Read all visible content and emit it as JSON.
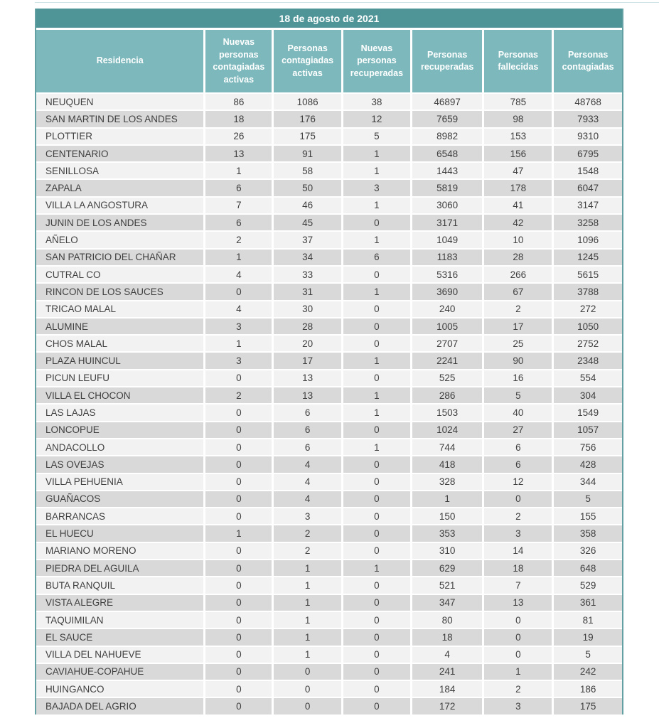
{
  "table": {
    "title": "18 de agosto de 2021",
    "columns": [
      "Residencia",
      "Nuevas personas contagiadas activas",
      "Personas contagiadas activas",
      "Nuevas personas recuperadas",
      "Personas recuperadas",
      "Personas fallecidas",
      "Personas contagiadas"
    ],
    "rows": [
      {
        "residencia": "NEUQUEN",
        "values": [
          86,
          1086,
          38,
          46897,
          785,
          48768
        ]
      },
      {
        "residencia": "SAN MARTIN DE LOS ANDES",
        "values": [
          18,
          176,
          12,
          7659,
          98,
          7933
        ]
      },
      {
        "residencia": "PLOTTIER",
        "values": [
          26,
          175,
          5,
          8982,
          153,
          9310
        ]
      },
      {
        "residencia": "CENTENARIO",
        "values": [
          13,
          91,
          1,
          6548,
          156,
          6795
        ]
      },
      {
        "residencia": "SENILLOSA",
        "values": [
          1,
          58,
          1,
          1443,
          47,
          1548
        ]
      },
      {
        "residencia": "ZAPALA",
        "values": [
          6,
          50,
          3,
          5819,
          178,
          6047
        ]
      },
      {
        "residencia": "VILLA LA ANGOSTURA",
        "values": [
          7,
          46,
          1,
          3060,
          41,
          3147
        ]
      },
      {
        "residencia": "JUNIN DE LOS ANDES",
        "values": [
          6,
          45,
          0,
          3171,
          42,
          3258
        ]
      },
      {
        "residencia": "AÑELO",
        "values": [
          2,
          37,
          1,
          1049,
          10,
          1096
        ]
      },
      {
        "residencia": "SAN PATRICIO DEL CHAÑAR",
        "values": [
          1,
          34,
          6,
          1183,
          28,
          1245
        ]
      },
      {
        "residencia": "CUTRAL CO",
        "values": [
          4,
          33,
          0,
          5316,
          266,
          5615
        ]
      },
      {
        "residencia": "RINCON DE LOS SAUCES",
        "values": [
          0,
          31,
          1,
          3690,
          67,
          3788
        ]
      },
      {
        "residencia": "TRICAO MALAL",
        "values": [
          4,
          30,
          0,
          240,
          2,
          272
        ]
      },
      {
        "residencia": "ALUMINE",
        "values": [
          3,
          28,
          0,
          1005,
          17,
          1050
        ]
      },
      {
        "residencia": "CHOS MALAL",
        "values": [
          1,
          20,
          0,
          2707,
          25,
          2752
        ]
      },
      {
        "residencia": "PLAZA HUINCUL",
        "values": [
          3,
          17,
          1,
          2241,
          90,
          2348
        ]
      },
      {
        "residencia": "PICUN LEUFU",
        "values": [
          0,
          13,
          0,
          525,
          16,
          554
        ]
      },
      {
        "residencia": "VILLA EL CHOCON",
        "values": [
          2,
          13,
          1,
          286,
          5,
          304
        ]
      },
      {
        "residencia": "LAS LAJAS",
        "values": [
          0,
          6,
          1,
          1503,
          40,
          1549
        ]
      },
      {
        "residencia": "LONCOPUE",
        "values": [
          0,
          6,
          0,
          1024,
          27,
          1057
        ]
      },
      {
        "residencia": "ANDACOLLO",
        "values": [
          0,
          6,
          1,
          744,
          6,
          756
        ]
      },
      {
        "residencia": "LAS OVEJAS",
        "values": [
          0,
          4,
          0,
          418,
          6,
          428
        ]
      },
      {
        "residencia": "VILLA PEHUENIA",
        "values": [
          0,
          4,
          0,
          328,
          12,
          344
        ]
      },
      {
        "residencia": "GUAÑACOS",
        "values": [
          0,
          4,
          0,
          1,
          0,
          5
        ]
      },
      {
        "residencia": "BARRANCAS",
        "values": [
          0,
          3,
          0,
          150,
          2,
          155
        ]
      },
      {
        "residencia": "EL HUECU",
        "values": [
          1,
          2,
          0,
          353,
          3,
          358
        ]
      },
      {
        "residencia": "MARIANO MORENO",
        "values": [
          0,
          2,
          0,
          310,
          14,
          326
        ]
      },
      {
        "residencia": "PIEDRA DEL AGUILA",
        "values": [
          0,
          1,
          1,
          629,
          18,
          648
        ]
      },
      {
        "residencia": "BUTA RANQUIL",
        "values": [
          0,
          1,
          0,
          521,
          7,
          529
        ]
      },
      {
        "residencia": "VISTA ALEGRE",
        "values": [
          0,
          1,
          0,
          347,
          13,
          361
        ]
      },
      {
        "residencia": "TAQUIMILAN",
        "values": [
          0,
          1,
          0,
          80,
          0,
          81
        ]
      },
      {
        "residencia": "EL SAUCE",
        "values": [
          0,
          1,
          0,
          18,
          0,
          19
        ]
      },
      {
        "residencia": "VILLA DEL NAHUEVE",
        "values": [
          0,
          1,
          0,
          4,
          0,
          5
        ]
      },
      {
        "residencia": "CAVIAHUE-COPAHUE",
        "values": [
          0,
          0,
          0,
          241,
          1,
          242
        ]
      },
      {
        "residencia": "HUINGANCO",
        "values": [
          0,
          0,
          0,
          184,
          2,
          186
        ]
      },
      {
        "residencia": "BAJADA DEL AGRIO",
        "values": [
          0,
          0,
          0,
          172,
          3,
          175
        ]
      }
    ],
    "colors": {
      "title_band": "#4f9598",
      "header_band": "#7cb8bc",
      "row_light": "#f2f2f2",
      "row_dark": "#d9d9d9",
      "border": "#62a0a4",
      "text": "#3f3f3f",
      "hairline": "#cfe4e5"
    }
  }
}
